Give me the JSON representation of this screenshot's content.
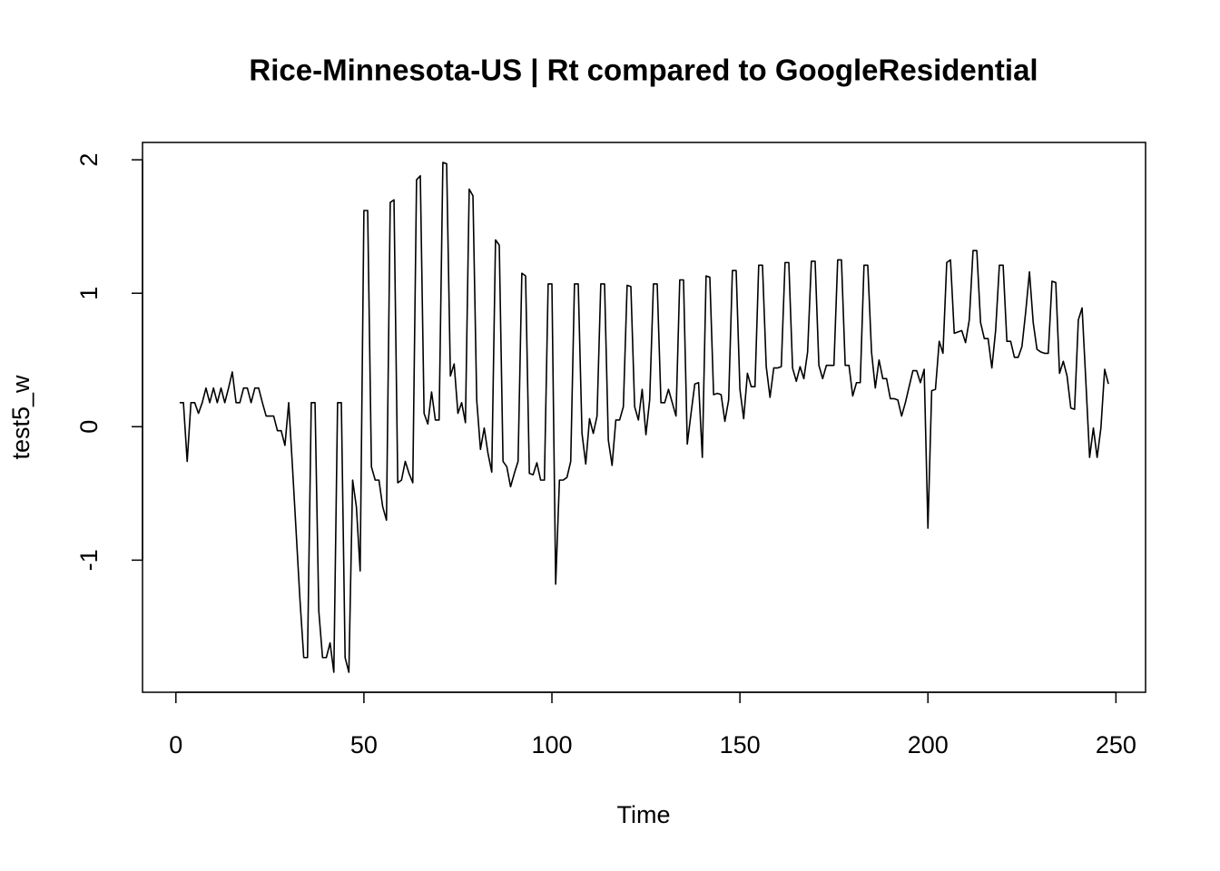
{
  "chart_data": {
    "type": "line",
    "title": "Rice-Minnesota-US | Rt compared to GoogleResidential",
    "xlabel": "Time",
    "ylabel": "test5_w",
    "color": "#000000",
    "xlim": [
      -8.88,
      257.88
    ],
    "ylim": [
      -1.99,
      2.13
    ],
    "xticks": [
      0,
      50,
      100,
      150,
      200,
      250
    ],
    "yticks": [
      -1,
      0,
      1,
      2
    ],
    "x": [
      1,
      2,
      3,
      4,
      5,
      6,
      7,
      8,
      9,
      10,
      11,
      12,
      13,
      14,
      15,
      16,
      17,
      18,
      19,
      20,
      21,
      22,
      23,
      24,
      25,
      26,
      27,
      28,
      29,
      30,
      31,
      32,
      33,
      34,
      35,
      36,
      37,
      38,
      39,
      40,
      41,
      42,
      43,
      44,
      45,
      46,
      47,
      48,
      49,
      50,
      51,
      52,
      53,
      54,
      55,
      56,
      57,
      58,
      59,
      60,
      61,
      62,
      63,
      64,
      65,
      66,
      67,
      68,
      69,
      70,
      71,
      72,
      73,
      74,
      75,
      76,
      77,
      78,
      79,
      80,
      81,
      82,
      83,
      84,
      85,
      86,
      87,
      88,
      89,
      90,
      91,
      92,
      93,
      94,
      95,
      96,
      97,
      98,
      99,
      100,
      101,
      102,
      103,
      104,
      105,
      106,
      107,
      108,
      109,
      110,
      111,
      112,
      113,
      114,
      115,
      116,
      117,
      118,
      119,
      120,
      121,
      122,
      123,
      124,
      125,
      126,
      127,
      128,
      129,
      130,
      131,
      132,
      133,
      134,
      135,
      136,
      137,
      138,
      139,
      140,
      141,
      142,
      143,
      144,
      145,
      146,
      147,
      148,
      149,
      150,
      151,
      152,
      153,
      154,
      155,
      156,
      157,
      158,
      159,
      160,
      161,
      162,
      163,
      164,
      165,
      166,
      167,
      168,
      169,
      170,
      171,
      172,
      173,
      174,
      175,
      176,
      177,
      178,
      179,
      180,
      181,
      182,
      183,
      184,
      185,
      186,
      187,
      188,
      189,
      190,
      191,
      192,
      193,
      194,
      195,
      196,
      197,
      198,
      199,
      200,
      201,
      202,
      203,
      204,
      205,
      206,
      207,
      208,
      209,
      210,
      211,
      212,
      213,
      214,
      215,
      216,
      217,
      218,
      219,
      220,
      221,
      222,
      223,
      224,
      225,
      226,
      227,
      228,
      229,
      230,
      231,
      232,
      233,
      234,
      235,
      236,
      237,
      238,
      239,
      240,
      241,
      242,
      243,
      244,
      245,
      246,
      247,
      248
    ],
    "values": [
      0.18,
      0.18,
      -0.26,
      0.18,
      0.18,
      0.1,
      0.18,
      0.29,
      0.18,
      0.29,
      0.18,
      0.29,
      0.18,
      0.29,
      0.41,
      0.18,
      0.18,
      0.29,
      0.29,
      0.18,
      0.29,
      0.29,
      0.18,
      0.08,
      0.08,
      0.08,
      -0.03,
      -0.03,
      -0.14,
      0.18,
      -0.3,
      -0.8,
      -1.3,
      -1.73,
      -1.73,
      0.18,
      0.18,
      -1.38,
      -1.73,
      -1.73,
      -1.62,
      -1.84,
      0.18,
      0.18,
      -1.73,
      -1.84,
      -0.4,
      -0.6,
      -1.08,
      1.62,
      1.62,
      -0.3,
      -0.4,
      -0.4,
      -0.6,
      -0.7,
      1.68,
      1.7,
      -0.42,
      -0.4,
      -0.26,
      -0.35,
      -0.42,
      1.85,
      1.88,
      0.1,
      0.02,
      0.26,
      0.05,
      0.05,
      1.98,
      1.97,
      0.38,
      0.47,
      0.1,
      0.18,
      0.03,
      1.78,
      1.73,
      0.2,
      -0.17,
      -0.01,
      -0.2,
      -0.34,
      1.4,
      1.36,
      -0.26,
      -0.3,
      -0.45,
      -0.35,
      -0.26,
      1.15,
      1.13,
      -0.35,
      -0.36,
      -0.27,
      -0.4,
      -0.4,
      1.07,
      1.07,
      -1.18,
      -0.4,
      -0.4,
      -0.38,
      -0.26,
      1.07,
      1.07,
      -0.05,
      -0.28,
      0.06,
      -0.05,
      0.08,
      1.07,
      1.07,
      -0.1,
      -0.29,
      0.05,
      0.05,
      0.15,
      1.06,
      1.05,
      0.15,
      0.05,
      0.28,
      -0.06,
      0.2,
      1.07,
      1.07,
      0.18,
      0.18,
      0.28,
      0.18,
      0.08,
      1.1,
      1.1,
      -0.13,
      0.1,
      0.32,
      0.33,
      -0.23,
      1.13,
      1.12,
      0.24,
      0.25,
      0.24,
      0.04,
      0.2,
      1.17,
      1.17,
      0.28,
      0.06,
      0.4,
      0.3,
      0.3,
      1.21,
      1.21,
      0.45,
      0.22,
      0.44,
      0.44,
      0.45,
      1.23,
      1.23,
      0.44,
      0.34,
      0.45,
      0.36,
      0.56,
      1.24,
      1.24,
      0.46,
      0.36,
      0.46,
      0.46,
      0.46,
      1.25,
      1.25,
      0.46,
      0.46,
      0.23,
      0.33,
      0.33,
      1.21,
      1.21,
      0.56,
      0.29,
      0.5,
      0.36,
      0.36,
      0.21,
      0.21,
      0.2,
      0.08,
      0.18,
      0.3,
      0.42,
      0.42,
      0.33,
      0.43,
      -0.76,
      0.27,
      0.28,
      0.64,
      0.55,
      1.23,
      1.25,
      0.7,
      0.71,
      0.72,
      0.63,
      0.8,
      1.32,
      1.32,
      0.78,
      0.66,
      0.66,
      0.44,
      0.72,
      1.21,
      1.21,
      0.64,
      0.64,
      0.52,
      0.52,
      0.6,
      0.86,
      1.16,
      0.78,
      0.58,
      0.56,
      0.55,
      0.55,
      1.09,
      1.08,
      0.4,
      0.49,
      0.38,
      0.14,
      0.13,
      0.8,
      0.89,
      0.34,
      -0.23,
      -0.01,
      -0.23,
      -0.01,
      0.43,
      0.32
    ]
  }
}
